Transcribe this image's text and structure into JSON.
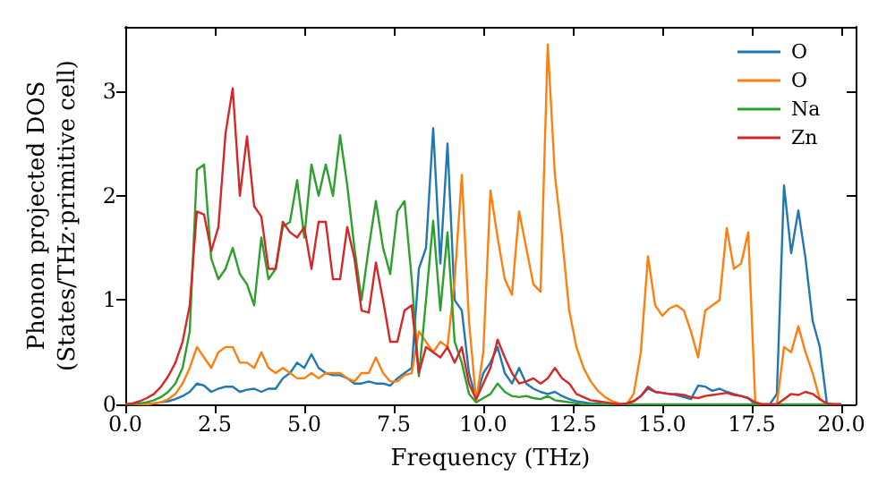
{
  "chart_data": {
    "type": "line",
    "xlabel": "Frequency (THz)",
    "ylabel": "Phonon projected DOS\n(States/THz·primitive cell)",
    "x": [
      0,
      0.2,
      0.4,
      0.6,
      0.8,
      1,
      1.2,
      1.4,
      1.6,
      1.8,
      2,
      2.2,
      2.4,
      2.6,
      2.8,
      3,
      3.2,
      3.4,
      3.6,
      3.8,
      4,
      4.2,
      4.4,
      4.6,
      4.8,
      5,
      5.2,
      5.4,
      5.6,
      5.8,
      6,
      6.2,
      6.4,
      6.6,
      6.8,
      7,
      7.2,
      7.4,
      7.6,
      7.8,
      8,
      8.2,
      8.4,
      8.6,
      8.8,
      9,
      9.2,
      9.4,
      9.6,
      9.8,
      10,
      10.2,
      10.4,
      10.6,
      10.8,
      11,
      11.2,
      11.4,
      11.6,
      11.8,
      12,
      12.2,
      12.4,
      12.6,
      12.8,
      13,
      13.2,
      13.4,
      13.6,
      13.8,
      14,
      14.2,
      14.4,
      14.6,
      14.8,
      15,
      15.2,
      15.4,
      15.6,
      15.8,
      16,
      16.2,
      16.4,
      16.6,
      16.8,
      17,
      17.2,
      17.4,
      17.6,
      17.8,
      18,
      18.2,
      18.4,
      18.6,
      18.8,
      19,
      19.2,
      19.4,
      19.6,
      19.8,
      20
    ],
    "series": [
      {
        "name": "O",
        "color": "#1f77b4",
        "values": [
          null,
          null,
          null,
          0,
          0.01,
          0.02,
          0.03,
          0.05,
          0.08,
          0.12,
          0.2,
          0.18,
          0.12,
          0.15,
          0.17,
          0.17,
          0.12,
          0.14,
          0.15,
          0.12,
          0.15,
          0.15,
          0.25,
          0.3,
          0.4,
          0.35,
          0.48,
          0.35,
          0.3,
          0.28,
          0.28,
          0.25,
          0.2,
          0.2,
          0.22,
          0.2,
          0.2,
          0.18,
          0.25,
          0.3,
          0.35,
          1.3,
          1.5,
          2.65,
          1.35,
          2.5,
          1.0,
          0.9,
          0.3,
          0.05,
          0.3,
          0.4,
          0.55,
          0.3,
          0.2,
          0.35,
          0.2,
          0.15,
          0.12,
          0.1,
          0.12,
          0.08,
          0.05,
          0.03,
          0.02,
          0.01,
          0.01,
          0,
          0,
          0,
          0.01,
          0.03,
          0.08,
          0.15,
          0.12,
          0.11,
          0.1,
          0.09,
          0.07,
          0.05,
          0.18,
          0.17,
          0.13,
          0.15,
          0.12,
          0.1,
          0.08,
          0.06,
          0,
          0,
          0,
          0.1,
          2.1,
          1.45,
          1.86,
          1.4,
          0.8,
          0.55,
          0,
          0,
          0
        ]
      },
      {
        "name": "O",
        "color": "#ff7f0e",
        "values": [
          0,
          0,
          0,
          0,
          0.01,
          0.02,
          0.05,
          0.1,
          0.2,
          0.35,
          0.55,
          0.45,
          0.35,
          0.5,
          0.55,
          0.55,
          0.4,
          0.4,
          0.35,
          0.5,
          0.35,
          0.3,
          0.35,
          0.3,
          0.25,
          0.25,
          0.3,
          0.25,
          0.3,
          0.3,
          0.3,
          0.25,
          0.22,
          0.3,
          0.3,
          0.45,
          0.3,
          0.22,
          0.22,
          0.28,
          0.3,
          0.7,
          0.6,
          0.5,
          0.6,
          0.55,
          1.2,
          2.2,
          0.8,
          0.03,
          0.5,
          2.05,
          1.6,
          1.2,
          1.05,
          1.85,
          1.5,
          1.15,
          1.08,
          3.45,
          2.2,
          1.6,
          0.9,
          0.55,
          0.35,
          0.22,
          0.13,
          0.07,
          0.03,
          0.01,
          0,
          0.1,
          0.5,
          1.42,
          0.95,
          0.85,
          0.92,
          0.95,
          0.9,
          0.7,
          0.45,
          0.9,
          0.95,
          1.0,
          1.69,
          1.3,
          1.35,
          1.65,
          0,
          0,
          0,
          0,
          0.55,
          0.5,
          0.75,
          0.5,
          0.3,
          0.05,
          0,
          0,
          0
        ]
      },
      {
        "name": "Na",
        "color": "#2ca02c",
        "values": [
          0,
          0,
          0.01,
          0.02,
          0.04,
          0.07,
          0.12,
          0.2,
          0.35,
          0.7,
          2.25,
          2.3,
          1.4,
          1.2,
          1.3,
          1.5,
          1.25,
          1.15,
          0.95,
          1.6,
          1.2,
          1.3,
          1.7,
          1.75,
          2.15,
          1.6,
          2.3,
          2.0,
          2.3,
          2.0,
          2.58,
          2.1,
          1.5,
          1.0,
          1.5,
          1.95,
          1.5,
          1.25,
          1.85,
          1.95,
          1.2,
          0.27,
          1.0,
          1.76,
          0.9,
          1.65,
          0.6,
          0.4,
          0.1,
          0.02,
          0.06,
          0.1,
          0.2,
          0.12,
          0.08,
          0.07,
          0.08,
          0.06,
          0.05,
          0.08,
          0.04,
          0.03,
          0.02,
          0.01,
          0,
          0,
          0,
          0,
          0,
          0,
          0,
          0,
          0,
          0,
          0,
          0,
          0,
          0,
          0,
          0,
          0,
          0,
          0,
          0,
          0,
          0,
          0,
          0,
          0,
          0,
          0,
          0,
          0,
          0,
          0,
          0,
          0,
          0,
          0,
          0,
          0
        ]
      },
      {
        "name": "Zn",
        "color": "#d62728",
        "values": [
          0,
          0.01,
          0.03,
          0.06,
          0.1,
          0.17,
          0.27,
          0.4,
          0.6,
          0.95,
          1.85,
          1.82,
          1.47,
          1.7,
          2.6,
          3.03,
          2.0,
          2.57,
          1.9,
          1.8,
          1.3,
          1.3,
          1.75,
          1.65,
          1.6,
          1.7,
          1.3,
          1.75,
          1.75,
          1.2,
          1.2,
          1.7,
          1.4,
          0.9,
          0.88,
          1.36,
          1.0,
          0.6,
          0.6,
          0.9,
          0.95,
          0.3,
          0.55,
          0.5,
          0.45,
          0.55,
          0.4,
          0.55,
          0.2,
          0.05,
          0.2,
          0.35,
          0.62,
          0.45,
          0.3,
          0.2,
          0.22,
          0.25,
          0.2,
          0.25,
          0.35,
          0.25,
          0.2,
          0.1,
          0.07,
          0.04,
          0.03,
          0.02,
          0.01,
          0,
          0.01,
          0.03,
          0.08,
          0.17,
          0.12,
          0.11,
          0.1,
          0.1,
          0.09,
          0.07,
          0.06,
          0.08,
          0.09,
          0.1,
          0.11,
          0.09,
          0.08,
          0.06,
          0.02,
          0,
          0,
          0,
          0.05,
          0.1,
          0.09,
          0.12,
          0.1,
          0.05,
          0.01,
          0,
          0
        ]
      }
    ],
    "xlim": [
      0,
      20.4
    ],
    "xticks": [
      {
        "value": 0,
        "label": "0.0"
      },
      {
        "value": 2.5,
        "label": "2.5"
      },
      {
        "value": 5,
        "label": "5.0"
      },
      {
        "value": 7.5,
        "label": "7.5"
      },
      {
        "value": 10,
        "label": "10.0"
      },
      {
        "value": 12.5,
        "label": "12.5"
      },
      {
        "value": 15,
        "label": "15.0"
      },
      {
        "value": 17.5,
        "label": "17.5"
      },
      {
        "value": 20,
        "label": "20.0"
      }
    ],
    "ylim": [
      0,
      3.62
    ],
    "yticks": [
      0,
      1,
      2,
      3
    ],
    "legend": "top right",
    "marker": "none",
    "line_style": "solid"
  }
}
